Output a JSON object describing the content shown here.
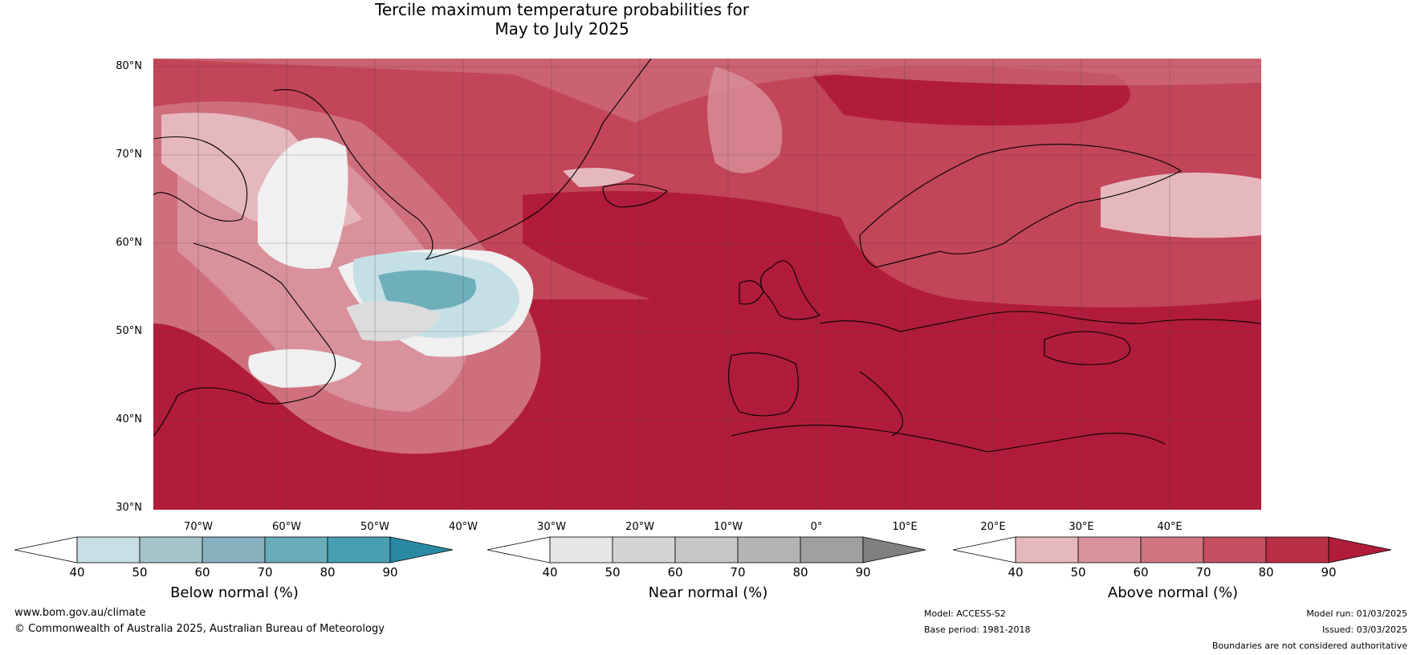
{
  "title": {
    "line1": "Tercile maximum temperature probabilities for",
    "line2": "May to July 2025"
  },
  "map": {
    "lat_labels": [
      "80°N",
      "70°N",
      "60°N",
      "50°N",
      "40°N",
      "30°N"
    ],
    "lon_labels": [
      "70°W",
      "60°W",
      "50°W",
      "40°W",
      "30°W",
      "20°W",
      "10°W",
      "0°",
      "10°E",
      "20°E",
      "30°E",
      "40°E"
    ],
    "colors": {
      "above_90": "#b01c39",
      "above_80": "#c24558",
      "above_70": "#cf6f7c",
      "above_60": "#d9919b",
      "above_50": "#e5b8be",
      "near_40": "#f0f0f0",
      "near_50": "#dcdcdc",
      "near_60": "#c8c8c8",
      "below_50": "#c5dfe6",
      "below_60": "#a4c5cd",
      "below_70": "#6eafbb",
      "below_80": "#4aa0b2"
    }
  },
  "colorbars": [
    {
      "title": "Below normal (%)",
      "ticks": [
        "40",
        "50",
        "60",
        "70",
        "80",
        "90"
      ],
      "colors": [
        "#c8dfe5",
        "#a6c4cc",
        "#88b1c0",
        "#6aacba",
        "#489fb2"
      ],
      "low": "#ffffff",
      "high": "#2b8aa3"
    },
    {
      "title": "Near normal (%)",
      "ticks": [
        "40",
        "50",
        "60",
        "70",
        "80",
        "90"
      ],
      "colors": [
        "#e6e6e6",
        "#d4d4d4",
        "#c6c6c6",
        "#b4b4b4",
        "#a0a0a0"
      ],
      "low": "#ffffff",
      "high": "#808080"
    },
    {
      "title": "Above normal (%)",
      "ticks": [
        "40",
        "50",
        "60",
        "70",
        "80",
        "90"
      ],
      "colors": [
        "#e5b8be",
        "#d9939c",
        "#cf7580",
        "#c54f60",
        "#b92f45"
      ],
      "low": "#ffffff",
      "high": "#b01c39"
    }
  ],
  "footer": {
    "website": "www.bom.gov.au/climate",
    "copyright": "© Commonwealth of Australia 2025, Australian Bureau of Meteorology",
    "model": "Model: ACCESS-S2",
    "base_period": "Base period: 1981-2018",
    "model_run": "Model run: 01/03/2025",
    "issued": "Issued: 03/03/2025",
    "disclaimer": "Boundaries are not considered authoritative"
  }
}
